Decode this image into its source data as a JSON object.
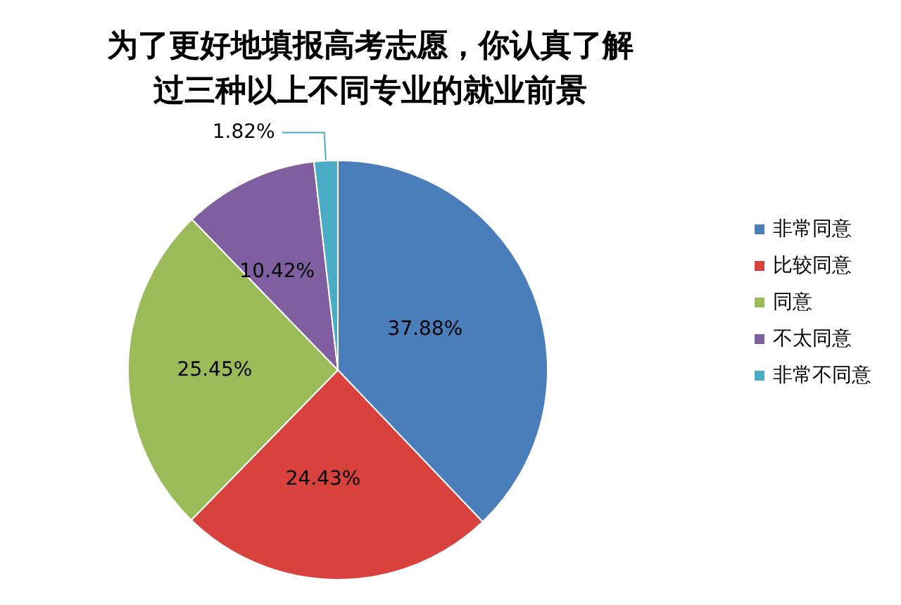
{
  "chart_data": {
    "type": "pie",
    "title": "为了更好地填报高考志愿，你认真了解过三种以上不同专业的就业前景",
    "categories": [
      "非常同意",
      "比较同意",
      "同意",
      "不太同意",
      "非常不同意"
    ],
    "values": [
      37.88,
      24.43,
      25.45,
      10.42,
      1.82
    ],
    "value_labels": [
      "37.88%",
      "24.43%",
      "25.45%",
      "10.42%",
      "1.82%"
    ],
    "colors": [
      "#4a7ebb",
      "#d9413c",
      "#9bbb59",
      "#7f5f9f",
      "#4bacc6"
    ],
    "legend": "right"
  }
}
